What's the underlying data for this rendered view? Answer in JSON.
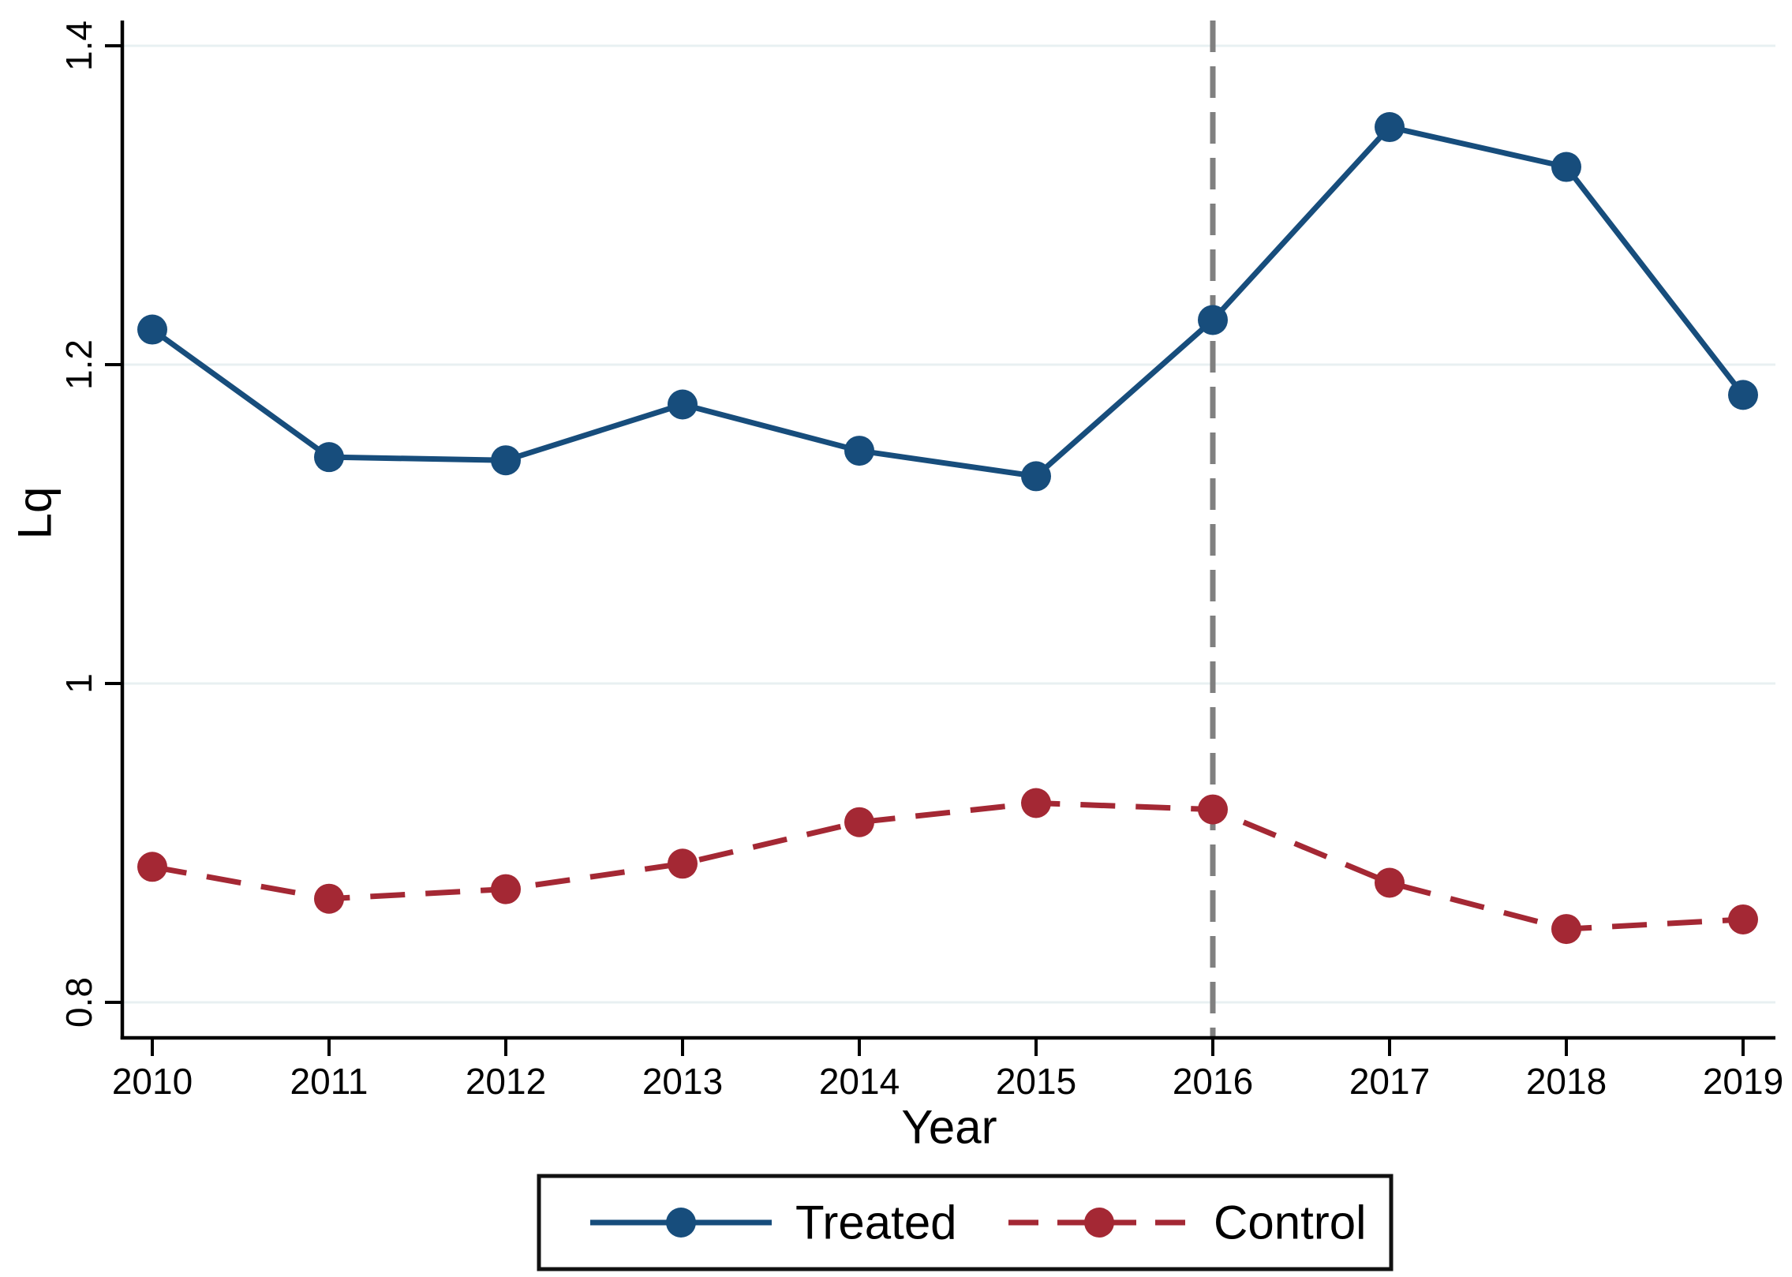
{
  "chart_data": {
    "type": "line",
    "title": "",
    "xlabel": "Year",
    "ylabel": "Lq",
    "x": [
      2010,
      2011,
      2012,
      2013,
      2014,
      2015,
      2016,
      2017,
      2018,
      2019
    ],
    "x_labels": [
      "2010",
      "2011",
      "2012",
      "2013",
      "2014",
      "2015",
      "2016",
      "2017",
      "2018",
      "2019"
    ],
    "series": [
      {
        "name": "Treated",
        "style": "solid",
        "color": "#174d7c",
        "values": [
          1.222,
          1.142,
          1.14,
          1.175,
          1.146,
          1.13,
          1.228,
          1.349,
          1.324,
          1.181
        ]
      },
      {
        "name": "Control",
        "style": "dashed",
        "color": "#a42834",
        "values": [
          0.885,
          0.865,
          0.871,
          0.887,
          0.913,
          0.925,
          0.921,
          0.875,
          0.846,
          0.852
        ]
      }
    ],
    "yticks": [
      0.8,
      1.0,
      1.2,
      1.4
    ],
    "ytick_labels": [
      "0.8",
      "1",
      "1.2",
      "1.4"
    ],
    "ylim": [
      0.778,
      1.416
    ],
    "xlim": [
      2009.83,
      2019.18
    ],
    "grid": true,
    "gridline_color": "#e8f0f2",
    "reference_line": {
      "x": 2016,
      "style": "dashed",
      "color": "#808080"
    },
    "legend": {
      "position": "bottom",
      "entries": [
        "Treated",
        "Control"
      ]
    }
  }
}
